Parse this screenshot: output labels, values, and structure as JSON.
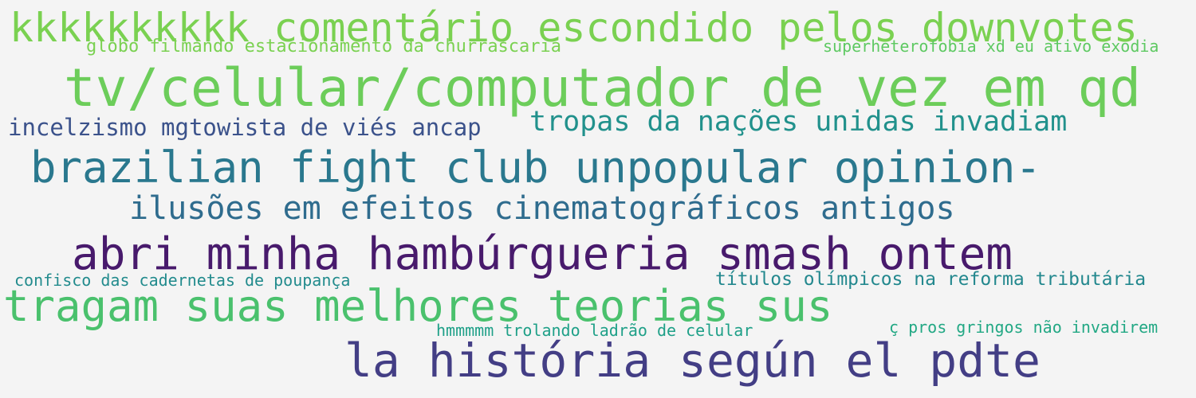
{
  "phrases": [
    {
      "text": "kkkkkkkkkk comentário escondido pelos downvotes",
      "color": "#7ad151"
    },
    {
      "text": "globo filmando estacionamento da churrascaria",
      "color": "#7ad151"
    },
    {
      "text": "superheterofobia xd eu ativo exodia",
      "color": "#5ec962"
    },
    {
      "text": "tv/celular/computador de vez em qd",
      "color": "#6ccd5a"
    },
    {
      "text": "incelzismo mgtowista de viés ancap",
      "color": "#3b528b"
    },
    {
      "text": "tropas da nações unidas invadiam",
      "color": "#21918c"
    },
    {
      "text": "brazilian fight club unpopular opinion-",
      "color": "#2a788e"
    },
    {
      "text": "ilusões em efeitos cinematográficos antigos",
      "color": "#2f6c8e"
    },
    {
      "text": "abri minha hambúrgueria smash ontem",
      "color": "#481a6c"
    },
    {
      "text": "confisco das cadernetas de poupança",
      "color": "#228b8d"
    },
    {
      "text": "títulos olímpicos na reforma tributária",
      "color": "#23888e"
    },
    {
      "text": "tragam suas melhores teorias sus",
      "color": "#4ac16d"
    },
    {
      "text": "hmmmmm trolando ladrão de celular",
      "color": "#1fa088"
    },
    {
      "text": "ç pros gringos não invadirem",
      "color": "#22a884"
    },
    {
      "text": "la história según el pdte",
      "color": "#433e85"
    }
  ]
}
